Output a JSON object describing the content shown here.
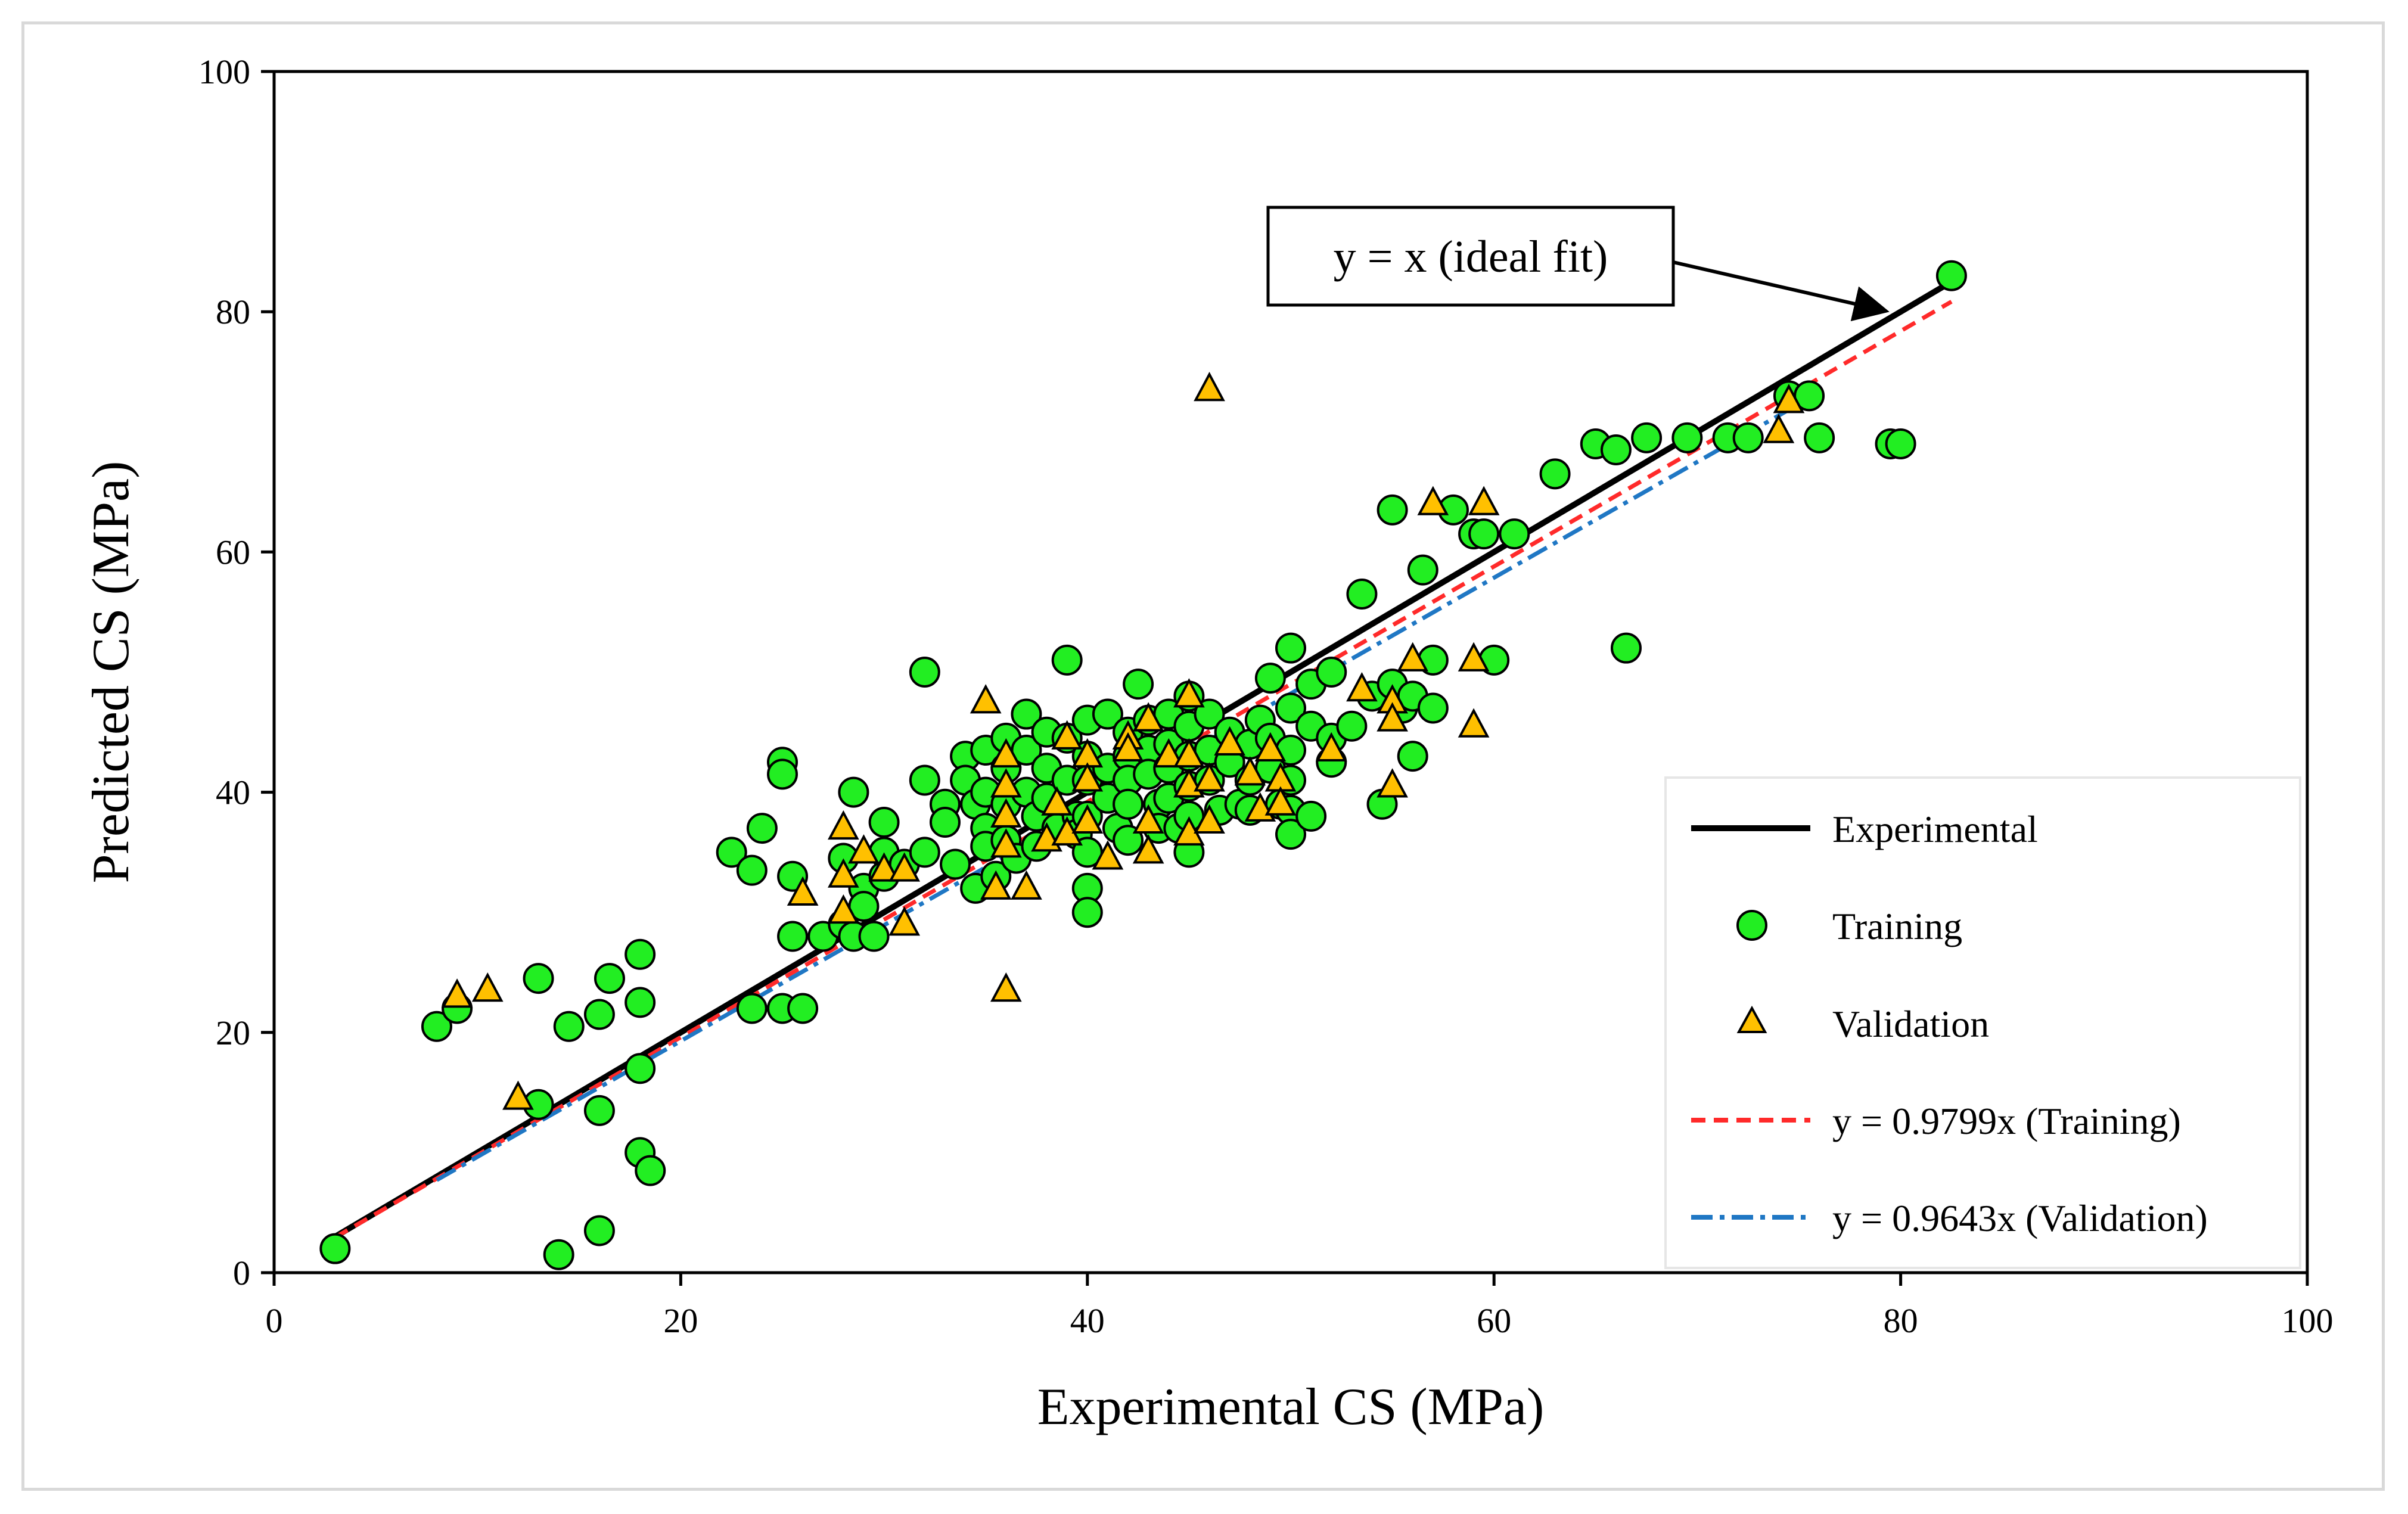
{
  "chart_data": {
    "type": "scatter",
    "xlabel": "Experimental CS (MPa)",
    "ylabel": "Predicted CS (MPa)",
    "xlim": [
      0,
      100
    ],
    "ylim": [
      0,
      100
    ],
    "xticks": [
      0,
      20,
      40,
      60,
      80,
      100
    ],
    "yticks": [
      0,
      20,
      40,
      60,
      80,
      100
    ],
    "grid": false,
    "legend_position": "bottom-right",
    "annotation": "y = x (ideal fit)",
    "colors": {
      "training_fill": "#22ee22",
      "validation_fill": "#ffc000",
      "experimental_line": "#000000",
      "training_fit": "#ff2a2a",
      "validation_fit": "#1f77c4"
    },
    "lines": [
      {
        "name": "Experimental",
        "style": "solid",
        "x": [
          3,
          82.5
        ],
        "y": [
          3,
          82.5
        ]
      },
      {
        "name": "y = 0.9799x (Training)",
        "style": "dashed",
        "slope": 0.9799,
        "x": [
          3,
          82.5
        ]
      },
      {
        "name": "y = 0.9643x (Validation)",
        "style": "dashdot",
        "slope": 0.9643,
        "x": [
          8,
          75
        ]
      }
    ],
    "series": [
      {
        "name": "Training",
        "marker": "circle",
        "points": [
          [
            3,
            2
          ],
          [
            8,
            20.5
          ],
          [
            9,
            22
          ],
          [
            13,
            24.5
          ],
          [
            13,
            14
          ],
          [
            14,
            1.5
          ],
          [
            14.5,
            20.5
          ],
          [
            16,
            21.5
          ],
          [
            16,
            13.5
          ],
          [
            16,
            3.5
          ],
          [
            16.5,
            24.5
          ],
          [
            18,
            26.5
          ],
          [
            18,
            22.5
          ],
          [
            18,
            17
          ],
          [
            18,
            10
          ],
          [
            18.5,
            8.5
          ],
          [
            22.5,
            35
          ],
          [
            23.5,
            33.5
          ],
          [
            23.5,
            22
          ],
          [
            24,
            37
          ],
          [
            25,
            42.5
          ],
          [
            25,
            41.5
          ],
          [
            25,
            22
          ],
          [
            25.5,
            33
          ],
          [
            26,
            22
          ],
          [
            25.5,
            28
          ],
          [
            27,
            28
          ],
          [
            28,
            34.5
          ],
          [
            28,
            29
          ],
          [
            28.5,
            40
          ],
          [
            28.5,
            28
          ],
          [
            29,
            32
          ],
          [
            29,
            30.5
          ],
          [
            29.5,
            28
          ],
          [
            30,
            37.5
          ],
          [
            30,
            35
          ],
          [
            30,
            33
          ],
          [
            31,
            34
          ],
          [
            32,
            50
          ],
          [
            32,
            41
          ],
          [
            32,
            35
          ],
          [
            33,
            39
          ],
          [
            33,
            37.5
          ],
          [
            33.5,
            34
          ],
          [
            34,
            43
          ],
          [
            34,
            41
          ],
          [
            34.5,
            39
          ],
          [
            34.5,
            32
          ],
          [
            35,
            40
          ],
          [
            35,
            37
          ],
          [
            35,
            35.5
          ],
          [
            35,
            43.5
          ],
          [
            35.5,
            33
          ],
          [
            36,
            44.5
          ],
          [
            36,
            42
          ],
          [
            36,
            39
          ],
          [
            36,
            36
          ],
          [
            36.5,
            34.5
          ],
          [
            37,
            46.5
          ],
          [
            37,
            43.5
          ],
          [
            37,
            40
          ],
          [
            37.5,
            38
          ],
          [
            37.5,
            35.5
          ],
          [
            38,
            45
          ],
          [
            38,
            42
          ],
          [
            38,
            39.5
          ],
          [
            38.5,
            37
          ],
          [
            39,
            51
          ],
          [
            39,
            44.5
          ],
          [
            39,
            41
          ],
          [
            39.5,
            38
          ],
          [
            39.5,
            36.5
          ],
          [
            40,
            46
          ],
          [
            40,
            43
          ],
          [
            40,
            41
          ],
          [
            40,
            38
          ],
          [
            40,
            35
          ],
          [
            40,
            32
          ],
          [
            40,
            30
          ],
          [
            41,
            46.5
          ],
          [
            41,
            42
          ],
          [
            41,
            39.5
          ],
          [
            41.5,
            37
          ],
          [
            42,
            45
          ],
          [
            42,
            43
          ],
          [
            42,
            41
          ],
          [
            42,
            39
          ],
          [
            42,
            36
          ],
          [
            42.5,
            49
          ],
          [
            43,
            46
          ],
          [
            43,
            43.5
          ],
          [
            43,
            41.5
          ],
          [
            43.5,
            39
          ],
          [
            43.5,
            37
          ],
          [
            44,
            46.5
          ],
          [
            44,
            44
          ],
          [
            44,
            42
          ],
          [
            44,
            39.5
          ],
          [
            44.5,
            37
          ],
          [
            45,
            48
          ],
          [
            45,
            45.5
          ],
          [
            45,
            43
          ],
          [
            45,
            40.5
          ],
          [
            45,
            38
          ],
          [
            45,
            35
          ],
          [
            46,
            46.5
          ],
          [
            46,
            43.5
          ],
          [
            46,
            41
          ],
          [
            46.5,
            38.5
          ],
          [
            47,
            45
          ],
          [
            47,
            42.5
          ],
          [
            47.5,
            39
          ],
          [
            48,
            44
          ],
          [
            48,
            41
          ],
          [
            48,
            38.5
          ],
          [
            48.5,
            46
          ],
          [
            49,
            49.5
          ],
          [
            49,
            44.5
          ],
          [
            49,
            42
          ],
          [
            49.5,
            39
          ],
          [
            50,
            52
          ],
          [
            50,
            47
          ],
          [
            50,
            43.5
          ],
          [
            50,
            41
          ],
          [
            50,
            38.5
          ],
          [
            50,
            36.5
          ],
          [
            51,
            49
          ],
          [
            51,
            45.5
          ],
          [
            51,
            38
          ],
          [
            52,
            50
          ],
          [
            52,
            44.5
          ],
          [
            52,
            42.5
          ],
          [
            53,
            45.5
          ],
          [
            53.5,
            56.5
          ],
          [
            54,
            48
          ],
          [
            54.5,
            39
          ],
          [
            55,
            63.5
          ],
          [
            55,
            49
          ],
          [
            55.5,
            47
          ],
          [
            56,
            48
          ],
          [
            56,
            43
          ],
          [
            56.5,
            58.5
          ],
          [
            57,
            51
          ],
          [
            57,
            47
          ],
          [
            58,
            63.5
          ],
          [
            59,
            61.5
          ],
          [
            59.5,
            61.5
          ],
          [
            60,
            51
          ],
          [
            61,
            61.5
          ],
          [
            63,
            66.5
          ],
          [
            65,
            69
          ],
          [
            66,
            68.5
          ],
          [
            66.5,
            52
          ],
          [
            67.5,
            69.5
          ],
          [
            69.5,
            69.5
          ],
          [
            71.5,
            69.5
          ],
          [
            72.5,
            69.5
          ],
          [
            74.5,
            73
          ],
          [
            75.5,
            73
          ],
          [
            76,
            69.5
          ],
          [
            79.5,
            69
          ],
          [
            80,
            69
          ],
          [
            82.5,
            83
          ]
        ]
      },
      {
        "name": "Validation",
        "marker": "triangle",
        "points": [
          [
            9,
            23
          ],
          [
            10.5,
            23.5
          ],
          [
            12,
            14.5
          ],
          [
            26,
            31.5
          ],
          [
            28,
            37
          ],
          [
            28,
            33
          ],
          [
            28,
            30
          ],
          [
            29,
            35
          ],
          [
            30,
            33.5
          ],
          [
            31,
            29
          ],
          [
            31,
            33.5
          ],
          [
            35,
            47.5
          ],
          [
            35.5,
            32
          ],
          [
            36,
            43
          ],
          [
            36,
            40.5
          ],
          [
            36,
            38
          ],
          [
            36,
            35.5
          ],
          [
            36,
            23.5
          ],
          [
            37,
            32
          ],
          [
            38,
            36
          ],
          [
            38.5,
            39
          ],
          [
            39,
            44.5
          ],
          [
            39,
            36.5
          ],
          [
            40,
            43
          ],
          [
            40,
            41
          ],
          [
            40,
            37.5
          ],
          [
            41,
            34.5
          ],
          [
            42,
            44.5
          ],
          [
            42,
            43.5
          ],
          [
            43,
            46
          ],
          [
            43,
            37.5
          ],
          [
            43,
            35
          ],
          [
            44,
            43
          ],
          [
            45,
            48
          ],
          [
            45,
            43
          ],
          [
            45,
            40.5
          ],
          [
            45,
            36.5
          ],
          [
            46,
            73.5
          ],
          [
            46,
            41
          ],
          [
            46,
            37.5
          ],
          [
            47,
            44
          ],
          [
            48,
            41.5
          ],
          [
            48.5,
            38.5
          ],
          [
            49,
            43.5
          ],
          [
            49.5,
            41
          ],
          [
            49.5,
            39
          ],
          [
            52,
            43.5
          ],
          [
            53.5,
            48.5
          ],
          [
            55,
            47.5
          ],
          [
            55,
            46
          ],
          [
            55,
            40.5
          ],
          [
            56,
            51
          ],
          [
            57,
            64
          ],
          [
            59,
            51
          ],
          [
            59,
            45.5
          ],
          [
            59.5,
            64
          ],
          [
            74,
            70
          ],
          [
            74.5,
            72.5
          ]
        ]
      }
    ],
    "legend": {
      "experimental": "Experimental",
      "training": "Training",
      "validation": "Validation",
      "training_fit": "y = 0.9799x (Training)",
      "validation_fit": "y = 0.9643x (Validation)"
    }
  }
}
